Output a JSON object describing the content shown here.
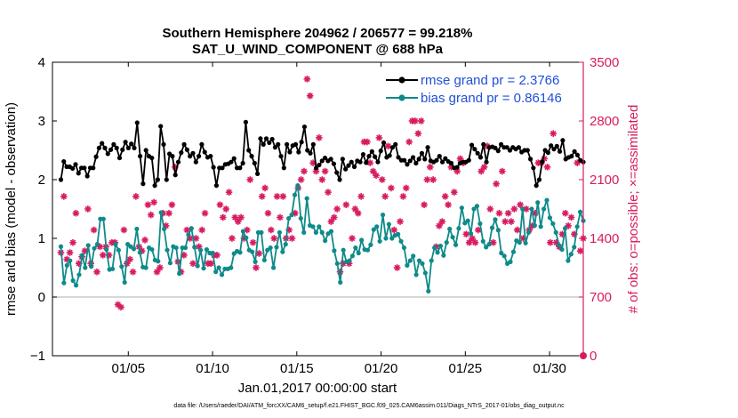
{
  "chart_data": {
    "type": "line",
    "title_line1": "Southern Hemisphere 204962 / 206577 = 99.218%",
    "title_line2": "SAT_U_WIND_COMPONENT @ 688 hPa",
    "xlabel": "Jan.01,2017 00:00:00 start",
    "ylabel_left": "rmse and bias (model - observation)",
    "ylabel_right": "# of obs: o=possible; ×=assimilated",
    "footnote": "data file: /Users/raeder/DAI/ATM_forcXX/CAM6_setup/f.e21.FHIST_BGC.f09_025.CAM6assim.011/Diags_NTrS_2017-01/obs_diag_output.nc",
    "xlim": [
      0.5,
      32.0
    ],
    "ylim_left": [
      -1,
      4
    ],
    "ylim_right": [
      0,
      3500
    ],
    "x_ticks": [
      5,
      10,
      15,
      20,
      25,
      30
    ],
    "x_tick_labels": [
      "01/05",
      "01/10",
      "01/15",
      "01/20",
      "01/25",
      "01/30"
    ],
    "y_left_ticks": [
      -1,
      0,
      1,
      2,
      3,
      4
    ],
    "y_left_tick_labels": [
      "−1",
      "0",
      "1",
      "2",
      "3",
      "4"
    ],
    "y_right_ticks": [
      0,
      700,
      1400,
      2100,
      2800,
      3500
    ],
    "y_right_tick_labels": [
      "0",
      "700",
      "1400",
      "2100",
      "2800",
      "3500"
    ],
    "zero_line": 0,
    "colors": {
      "rmse": "#000000",
      "bias": "#0f8a8a",
      "obs": "#d81b60",
      "right_axis": "#d81b60",
      "zero_line": "#bfbfbf",
      "legend_text": "#1f4fd8"
    },
    "legend": [
      {
        "name": "rmse grand pr = 2.3766",
        "series": "rmse"
      },
      {
        "name": "bias grand pr = 0.86146",
        "series": "bias"
      }
    ],
    "series": [
      {
        "name": "rmse",
        "axis": "left",
        "values": [
          2.0,
          2.31,
          2.22,
          2.22,
          2.19,
          2.26,
          2.11,
          2.2,
          2.2,
          2.06,
          2.2,
          2.2,
          2.39,
          2.54,
          2.62,
          2.54,
          2.44,
          2.51,
          2.6,
          2.54,
          2.37,
          2.51,
          2.64,
          2.54,
          2.61,
          2.54,
          2.97,
          2.4,
          1.93,
          2.5,
          2.4,
          2.37,
          1.9,
          2.0,
          2.91,
          2.6,
          2.0,
          2.44,
          2.4,
          2.08,
          2.3,
          2.46,
          2.6,
          2.51,
          2.4,
          2.45,
          2.3,
          2.4,
          2.6,
          2.47,
          2.38,
          2.4,
          2.21,
          1.9,
          2.2,
          2.2,
          2.26,
          2.27,
          2.3,
          2.36,
          2.2,
          2.2,
          2.28,
          2.98,
          2.5,
          2.4,
          2.28,
          2.1,
          2.7,
          2.6,
          2.7,
          2.63,
          2.69,
          2.55,
          2.6,
          2.4,
          2.2,
          2.6,
          2.47,
          2.58,
          2.6,
          2.47,
          2.64,
          2.9,
          2.5,
          2.45,
          2.6,
          2.2,
          2.25,
          2.32,
          2.37,
          2.32,
          2.35,
          2.27,
          2.12,
          2.0,
          2.35,
          2.18,
          2.24,
          2.3,
          2.22,
          2.32,
          2.3,
          2.43,
          2.29,
          2.4,
          2.48,
          2.39,
          2.3,
          2.49,
          2.63,
          2.38,
          2.41,
          2.55,
          2.6,
          2.38,
          2.33,
          2.33,
          2.26,
          2.32,
          2.38,
          2.28,
          2.35,
          2.45,
          2.35,
          2.55,
          2.32,
          2.3,
          2.33,
          2.4,
          2.3,
          2.36,
          2.31,
          2.28,
          2.2,
          2.21,
          2.28,
          2.3,
          2.3,
          2.33,
          2.59,
          2.52,
          2.45,
          2.38,
          2.6,
          2.3,
          2.55,
          2.56,
          2.54,
          2.49,
          2.6,
          2.55,
          2.55,
          2.5,
          2.55,
          2.52,
          2.55,
          2.47,
          2.5,
          2.5,
          2.35,
          2.2,
          1.9,
          2.0,
          2.3,
          2.5,
          2.46,
          2.58,
          2.52,
          2.57,
          2.48,
          2.67,
          2.35,
          2.38,
          2.4,
          2.48,
          2.42,
          2.33,
          2.3
        ]
      },
      {
        "name": "bias",
        "axis": "left",
        "values": [
          0.86,
          0.24,
          0.54,
          0.62,
          0.28,
          0.2,
          0.38,
          0.71,
          0.5,
          0.88,
          0.52,
          0.83,
          0.9,
          1.33,
          1.33,
          0.81,
          0.47,
          0.48,
          0.9,
          0.8,
          0.52,
          0.25,
          0.9,
          0.86,
          0.82,
          1.16,
          0.76,
          0.51,
          0.5,
          0.84,
          0.81,
          0.63,
          0.61,
          1.44,
          1.16,
          0.8,
          0.58,
          0.86,
          0.84,
          0.4,
          0.84,
          0.84,
          1.06,
          1.17,
          0.85,
          0.53,
          0.8,
          0.49,
          0.81,
          0.75,
          0.75,
          0.43,
          0.5,
          0.38,
          0.48,
          0.48,
          0.5,
          0.74,
          0.78,
          0.76,
          1.12,
          1.01,
          0.8,
          0.77,
          0.6,
          1.1,
          1.1,
          0.63,
          0.8,
          0.84,
          0.5,
          0.85,
          1.1,
          0.77,
          0.9,
          1.34,
          1.4,
          1.74,
          1.9,
          1.34,
          1.1,
          1.68,
          1.22,
          1.2,
          1.1,
          1.2,
          1.1,
          0.96,
          1.08,
          1.12,
          0.79,
          0.57,
          0.25,
          0.8,
          0.6,
          0.62,
          0.7,
          0.84,
          0.75,
          0.97,
          0.81,
          0.8,
          0.89,
          1.15,
          1.2,
          0.95,
          1.4,
          1.0,
          1.24,
          1.0,
          1.05,
          1.07,
          0.95,
          0.84,
          0.54,
          0.62,
          0.7,
          0.38,
          0.62,
          0.57,
          0.41,
          0.1,
          0.62,
          0.84,
          0.76,
          0.87,
          0.71,
          0.93,
          1.16,
          1.02,
          0.89,
          1.17,
          1.52,
          1.26,
          1.3,
          1.08,
          1.5,
          1.55,
          1.25,
          0.95,
          0.85,
          0.9,
          1.18,
          1.32,
          1.14,
          0.75,
          0.7,
          0.57,
          0.6,
          0.77,
          0.96,
          0.93,
          1.5,
          0.92,
          1.1,
          1.5,
          1.22,
          1.61,
          1.2,
          1.5,
          1.65,
          1.35,
          1.25,
          1.1,
          0.88,
          0.81,
          1.17,
          0.62,
          0.73,
          0.85,
          1.2,
          1.45,
          1.3
        ]
      },
      {
        "name": "obs_assimilated",
        "axis": "right",
        "values": [
          1230,
          1900,
          1150,
          1230,
          1350,
          1700,
          1100,
          1180,
          1250,
          1750,
          1100,
          1500,
          1000,
          1300,
          1200,
          1300,
          1200,
          1350,
          1350,
          610,
          580,
          1500,
          1100,
          1150,
          1000,
          1900,
          1300,
          1250,
          1380,
          1800,
          1680,
          1830,
          1000,
          1050,
          1700,
          1550,
          1700,
          1800,
          2250,
          1120,
          1000,
          1200,
          1500,
          1400,
          1100,
          1400,
          1300,
          1500,
          1700,
          1100,
          1100,
          1200,
          1200,
          1800,
          1650,
          1750,
          1950,
          1400,
          1650,
          1600,
          1650,
          1400,
          1500,
          2100,
          1350,
          1050,
          1220,
          1900,
          2000,
          1700,
          1500,
          1400,
          1900,
          1650,
          1900,
          1400,
          1500,
          1400,
          1700,
          2000,
          2100,
          2200,
          3300,
          3100,
          2300,
          2200,
          2600,
          2100,
          2200,
          1950,
          1600,
          1650,
          1750,
          1000,
          1100,
          1800,
          1100,
          1400,
          1750,
          1700,
          1900,
          2550,
          2550,
          2300,
          2200,
          2150,
          2600,
          2100,
          1900,
          2500,
          2000,
          1500,
          1050,
          1600,
          1900,
          2000,
          2550,
          2800,
          2800,
          2650,
          2800,
          1800,
          2100,
          2250,
          2100,
          1300,
          1550,
          1600,
          1900,
          1800,
          2250,
          1950,
          2200,
          2350,
          2300,
          1450,
          1350,
          1400,
          1350,
          1500,
          2200,
          2250,
          2500,
          1750,
          1350,
          2050,
          1700,
          2200,
          1600,
          1700,
          1600,
          1750,
          1500,
          1800,
          1400,
          1750,
          1500,
          1550,
          1700,
          2300,
          2300,
          2350,
          2250,
          1350,
          2650,
          1350,
          1300,
          1450,
          1700,
          1550,
          1650,
          1450,
          2300,
          1250,
          1400
        ]
      }
    ],
    "obs_edge_marker": {
      "x": 32.0,
      "value": 0
    }
  }
}
